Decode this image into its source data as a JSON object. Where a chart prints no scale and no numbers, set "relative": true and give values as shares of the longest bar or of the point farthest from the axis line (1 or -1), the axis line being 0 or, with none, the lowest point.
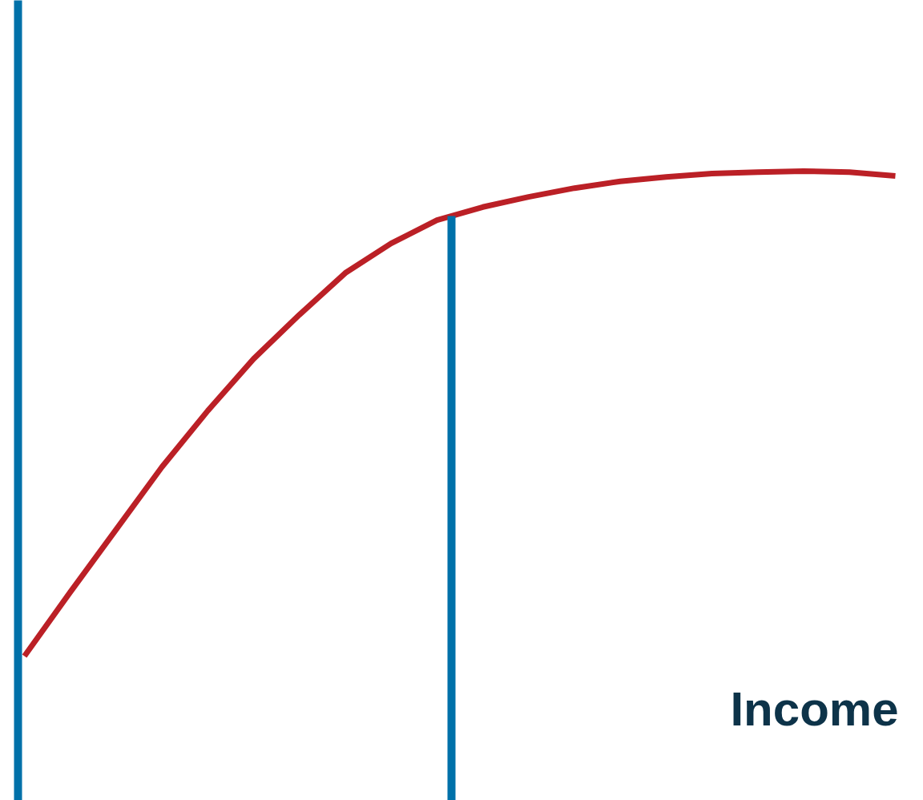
{
  "chart_data": {
    "type": "line",
    "relative": true,
    "xlabel": "Income",
    "categories": [
      null,
      null,
      null,
      null,
      null,
      null,
      null,
      null,
      null,
      null,
      null,
      null,
      null,
      null,
      null,
      null,
      null,
      null,
      null,
      null
    ],
    "series": [
      {
        "color": "#bb2026",
        "values": [
          0,
          0.132,
          0.261,
          0.39,
          0.506,
          0.613,
          0.704,
          0.79,
          0.851,
          0.899,
          0.926,
          0.947,
          0.965,
          0.979,
          0.988,
          0.995,
          0.998,
          1,
          0.998,
          0.99
        ]
      }
    ],
    "line_style": "solid"
  }
}
